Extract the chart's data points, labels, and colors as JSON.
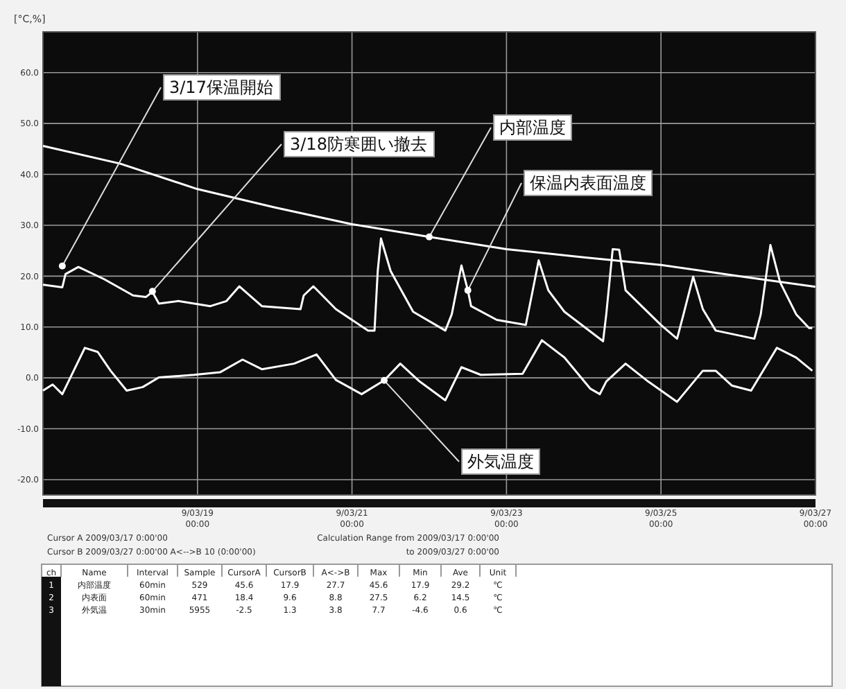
{
  "chart_data": {
    "type": "line",
    "ylabel": "[°C,%]",
    "xlim": [
      "2009-03-17T00:00",
      "2009-03-27T00:00"
    ],
    "xticks": [
      {
        "value": "2009-03-19T00:00",
        "label": "9/03/19\n00:00"
      },
      {
        "value": "2009-03-21T00:00",
        "label": "9/03/21\n00:00"
      },
      {
        "value": "2009-03-23T00:00",
        "label": "9/03/23\n00:00"
      },
      {
        "value": "2009-03-25T00:00",
        "label": "9/03/25\n00:00"
      },
      {
        "value": "2009-03-27T00:00",
        "label": "9/03/27\n00:00"
      }
    ],
    "ylim": [
      -23,
      68
    ],
    "yticks": [
      {
        "value": 60,
        "label": "60.0"
      },
      {
        "value": 50,
        "label": "50.0"
      },
      {
        "value": 40,
        "label": "40.0"
      },
      {
        "value": 30,
        "label": "30.0"
      },
      {
        "value": 20,
        "label": "20.0"
      },
      {
        "value": 10,
        "label": "10.0"
      },
      {
        "value": 0,
        "label": "0.0"
      },
      {
        "value": -10,
        "label": "-10.0"
      },
      {
        "value": -20,
        "label": "-20.0"
      }
    ],
    "grid": true,
    "marker": "none",
    "line_style": "solid",
    "series": [
      {
        "color": "#ffffff",
        "x": [
          "2009-03-17T00:00",
          "2009-03-18T00:00",
          "2009-03-19T00:00",
          "2009-03-20T00:00",
          "2009-03-21T00:00",
          "2009-03-22T00:00",
          "2009-03-23T00:00",
          "2009-03-24T00:00",
          "2009-03-25T00:00",
          "2009-03-26T00:00",
          "2009-03-27T00:00"
        ],
        "values": [
          45.6,
          42.1,
          37.1,
          33.5,
          30.2,
          27.7,
          25.3,
          23.7,
          22.2,
          20.0,
          17.9
        ]
      },
      {
        "color": "#ffffff",
        "x": [
          "2009-03-17T00:00",
          "2009-03-17T06:00",
          "2009-03-17T07:00",
          "2009-03-17T11:00",
          "2009-03-17T19:00",
          "2009-03-18T04:00",
          "2009-03-18T08:00",
          "2009-03-18T10:00",
          "2009-03-18T12:00",
          "2009-03-18T18:00",
          "2009-03-19T04:00",
          "2009-03-19T09:00",
          "2009-03-19T13:00",
          "2009-03-19T20:00",
          "2009-03-20T08:00",
          "2009-03-20T09:00",
          "2009-03-20T12:00",
          "2009-03-20T19:00",
          "2009-03-21T05:00",
          "2009-03-21T07:00",
          "2009-03-21T08:00",
          "2009-03-21T09:00",
          "2009-03-21T12:00",
          "2009-03-21T19:00",
          "2009-03-22T05:00",
          "2009-03-22T07:00",
          "2009-03-22T10:00",
          "2009-03-22T12:00",
          "2009-03-22T13:00",
          "2009-03-22T21:00",
          "2009-03-23T06:00",
          "2009-03-23T08:00",
          "2009-03-23T10:00",
          "2009-03-23T13:00",
          "2009-03-23T18:00",
          "2009-03-24T06:00",
          "2009-03-24T07:00",
          "2009-03-24T09:00",
          "2009-03-24T11:00",
          "2009-03-24T13:00",
          "2009-03-25T00:00",
          "2009-03-25T05:00",
          "2009-03-25T07:00",
          "2009-03-25T10:00",
          "2009-03-25T13:00",
          "2009-03-25T17:00",
          "2009-03-26T05:00",
          "2009-03-26T07:00",
          "2009-03-26T10:00",
          "2009-03-26T13:00",
          "2009-03-26T18:00",
          "2009-03-26T22:00",
          "2009-03-26T23:00"
        ],
        "values": [
          18.3,
          17.8,
          20.4,
          21.8,
          19.4,
          16.2,
          15.9,
          16.9,
          14.6,
          15.1,
          14.1,
          15.1,
          18.0,
          14.1,
          13.5,
          16.2,
          18.0,
          13.5,
          9.3,
          9.3,
          21.0,
          27.4,
          21.0,
          13.0,
          9.3,
          12.5,
          22.1,
          17.2,
          14.1,
          11.4,
          10.4,
          16.7,
          23.1,
          17.2,
          13.0,
          7.2,
          12.5,
          25.3,
          25.2,
          17.2,
          10.4,
          7.7,
          12.5,
          19.9,
          13.5,
          9.3,
          7.7,
          12.5,
          26.1,
          18.8,
          12.5,
          9.8,
          9.8
        ]
      },
      {
        "color": "#ffffff",
        "x": [
          "2009-03-17T00:00",
          "2009-03-17T03:00",
          "2009-03-17T06:00",
          "2009-03-17T13:00",
          "2009-03-17T17:00",
          "2009-03-17T21:00",
          "2009-03-18T02:00",
          "2009-03-18T07:00",
          "2009-03-18T12:00",
          "2009-03-18T23:00",
          "2009-03-19T07:00",
          "2009-03-19T14:00",
          "2009-03-19T20:00",
          "2009-03-20T06:00",
          "2009-03-20T13:00",
          "2009-03-20T19:00",
          "2009-03-21T03:00",
          "2009-03-21T10:00",
          "2009-03-21T15:00",
          "2009-03-21T21:00",
          "2009-03-22T05:00",
          "2009-03-22T10:00",
          "2009-03-22T16:00",
          "2009-03-23T05:00",
          "2009-03-23T11:00",
          "2009-03-23T18:00",
          "2009-03-24T02:00",
          "2009-03-24T05:00",
          "2009-03-24T07:00",
          "2009-03-24T13:00",
          "2009-03-24T20:00",
          "2009-03-25T05:00",
          "2009-03-25T13:00",
          "2009-03-25T17:00",
          "2009-03-25T22:00",
          "2009-03-26T04:00",
          "2009-03-26T12:00",
          "2009-03-26T18:00",
          "2009-03-26T23:00"
        ],
        "values": [
          -2.5,
          -1.3,
          -3.2,
          5.9,
          5.1,
          1.4,
          -2.5,
          -1.8,
          0.1,
          0.6,
          1.1,
          3.6,
          1.7,
          2.8,
          4.6,
          -0.4,
          -3.2,
          -0.5,
          2.8,
          -0.7,
          -4.4,
          2.1,
          0.6,
          0.8,
          7.4,
          4.0,
          -2.1,
          -3.2,
          -0.7,
          2.8,
          -0.7,
          -4.7,
          1.4,
          1.4,
          -1.5,
          -2.5,
          5.9,
          4.0,
          1.4
        ]
      }
    ],
    "annotations": [
      {
        "text": "3/17保温開始",
        "x": "2009-03-17T06:00",
        "y": 22
      },
      {
        "text": "3/18防寒囲い撤去",
        "x": "2009-03-18T10:00",
        "y": 17
      },
      {
        "text": "内部温度",
        "x": "2009-03-22T00:00",
        "y": 27.7
      },
      {
        "text": "保温内表面温度",
        "x": "2009-03-22T12:00",
        "y": 17.2
      },
      {
        "text": "外気温度",
        "x": "2009-03-21T10:00",
        "y": -0.5
      },
      "Cursor A 2009/03/17  0:00'00",
      "Cursor B 2009/03/27  0:00'00   A<-->B 10 (0:00'00)",
      "Calculation Range from 2009/03/17  0:00'00",
      "to 2009/03/27  0:00'00",
      "ch",
      "Name",
      "Interval",
      "Sample",
      "CursorA",
      "CursorB",
      "A<->B",
      "Max",
      "Min",
      "Ave",
      "Unit",
      "1",
      "内部温度",
      "60min",
      "529",
      "45.6",
      "17.9",
      "27.7",
      "45.6",
      "17.9",
      "29.2",
      "℃",
      "2",
      "内表面",
      "60min",
      "471",
      "18.4",
      "9.6",
      "8.8",
      "27.5",
      "6.2",
      "14.5",
      "℃",
      "3",
      "外気温",
      "30min",
      "5955",
      "-2.5",
      "1.3",
      "3.8",
      "7.7",
      "-4.6",
      "0.6",
      "℃"
    ]
  }
}
